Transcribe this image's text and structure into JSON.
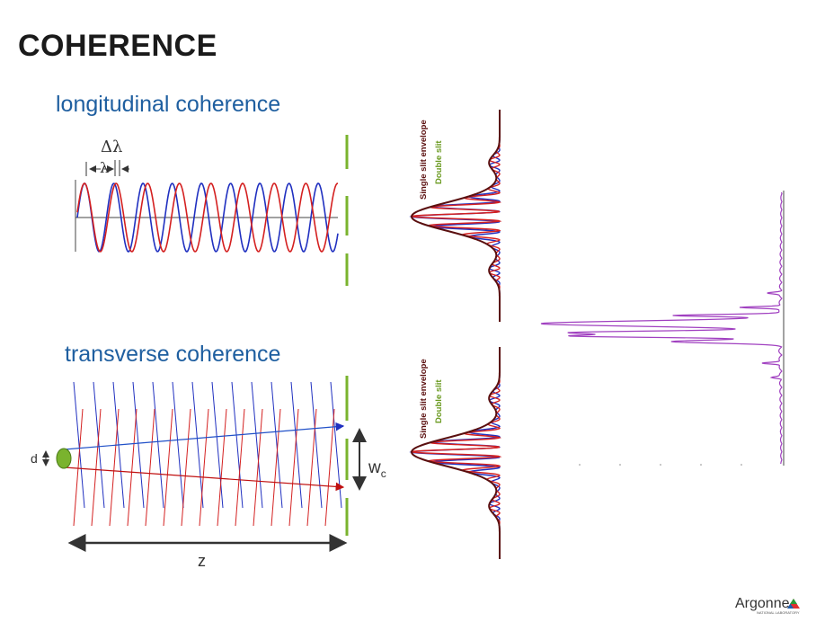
{
  "slide": {
    "title": "COHERENCE",
    "longitudinal_title": "longitudinal coherence",
    "transverse_title": "transverse  coherence"
  },
  "labels": {
    "delta_lambda": "Δλ",
    "lambda": "λ",
    "d": "d",
    "wc_main": "w",
    "wc_sub": "c",
    "z": "z",
    "single_slit": "Single slit envelope",
    "double_slit": "Double slit"
  },
  "colors": {
    "red": "#d42020",
    "blue": "#2030c0",
    "green": "#7ab32e",
    "dark_red": "#5a0f0f",
    "magenta": "#a040c0",
    "title_blue": "#1f5fa0"
  },
  "logo": {
    "name": "Argonne",
    "sub": "NATIONAL LABORATORY"
  }
}
